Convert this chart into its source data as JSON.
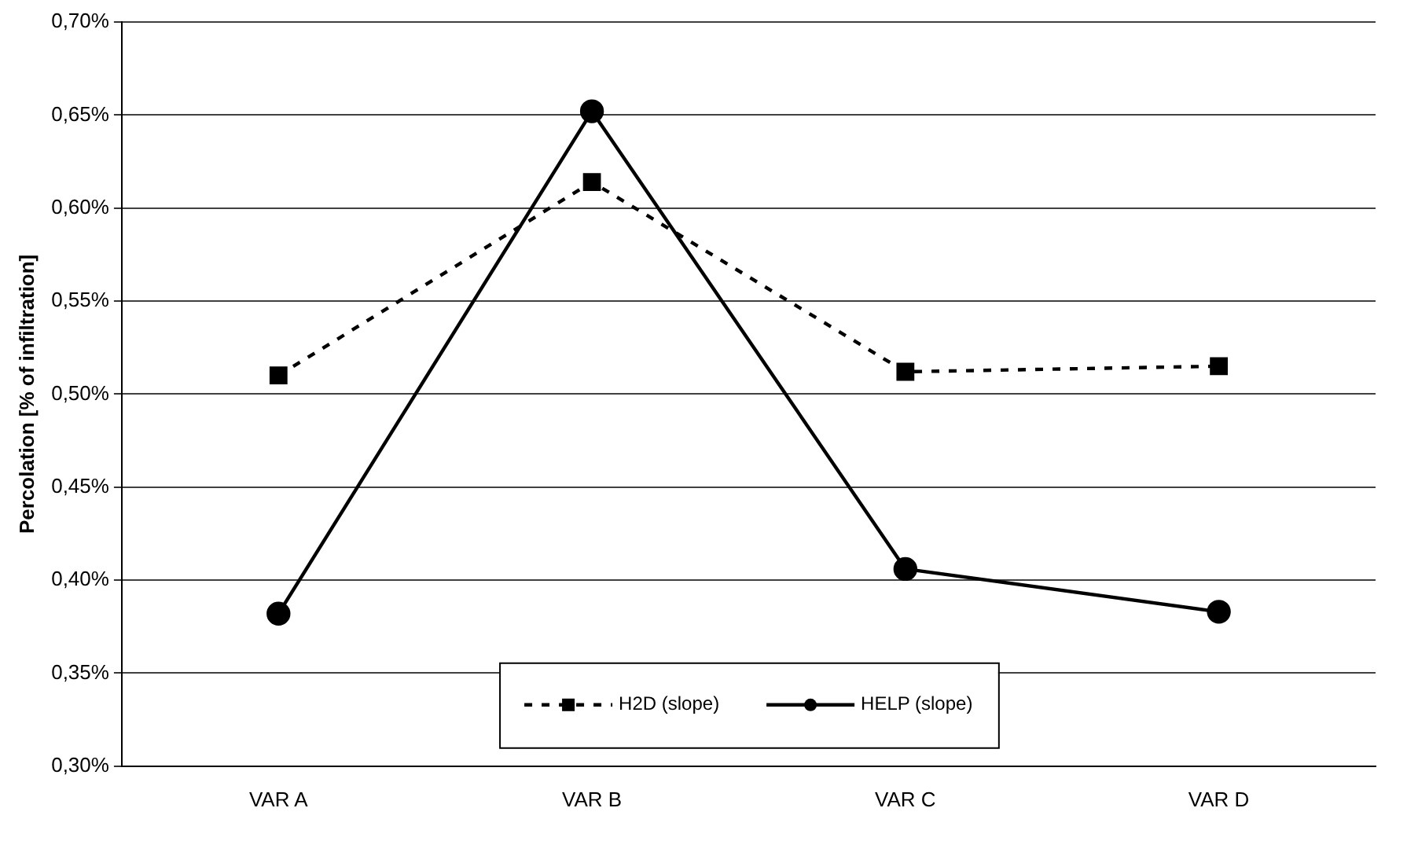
{
  "chart_data": {
    "type": "line",
    "ylabel": "Percolation [% of infiltration]",
    "categories": [
      "VAR A",
      "VAR B",
      "VAR C",
      "VAR D"
    ],
    "series": [
      {
        "name": "H2D (slope)",
        "color": "#000000",
        "values": [
          0.51,
          0.614,
          0.512,
          0.515
        ],
        "marker": "square",
        "line_style": "dashed"
      },
      {
        "name": "HELP (slope)",
        "color": "#000000",
        "values": [
          0.382,
          0.652,
          0.406,
          0.383
        ],
        "marker": "circle",
        "line_style": "solid"
      }
    ],
    "ylim": [
      0.3,
      0.7
    ],
    "yticks": [
      {
        "value": 0.3,
        "label": "0,30%"
      },
      {
        "value": 0.35,
        "label": "0,35%"
      },
      {
        "value": 0.4,
        "label": "0,40%"
      },
      {
        "value": 0.45,
        "label": "0,45%"
      },
      {
        "value": 0.5,
        "label": "0,50%"
      },
      {
        "value": 0.55,
        "label": "0,55%"
      },
      {
        "value": 0.6,
        "label": "0,60%"
      },
      {
        "value": 0.65,
        "label": "0,65%"
      },
      {
        "value": 0.7,
        "label": "0,70%"
      }
    ],
    "grid": "y",
    "legend": "bottom"
  }
}
